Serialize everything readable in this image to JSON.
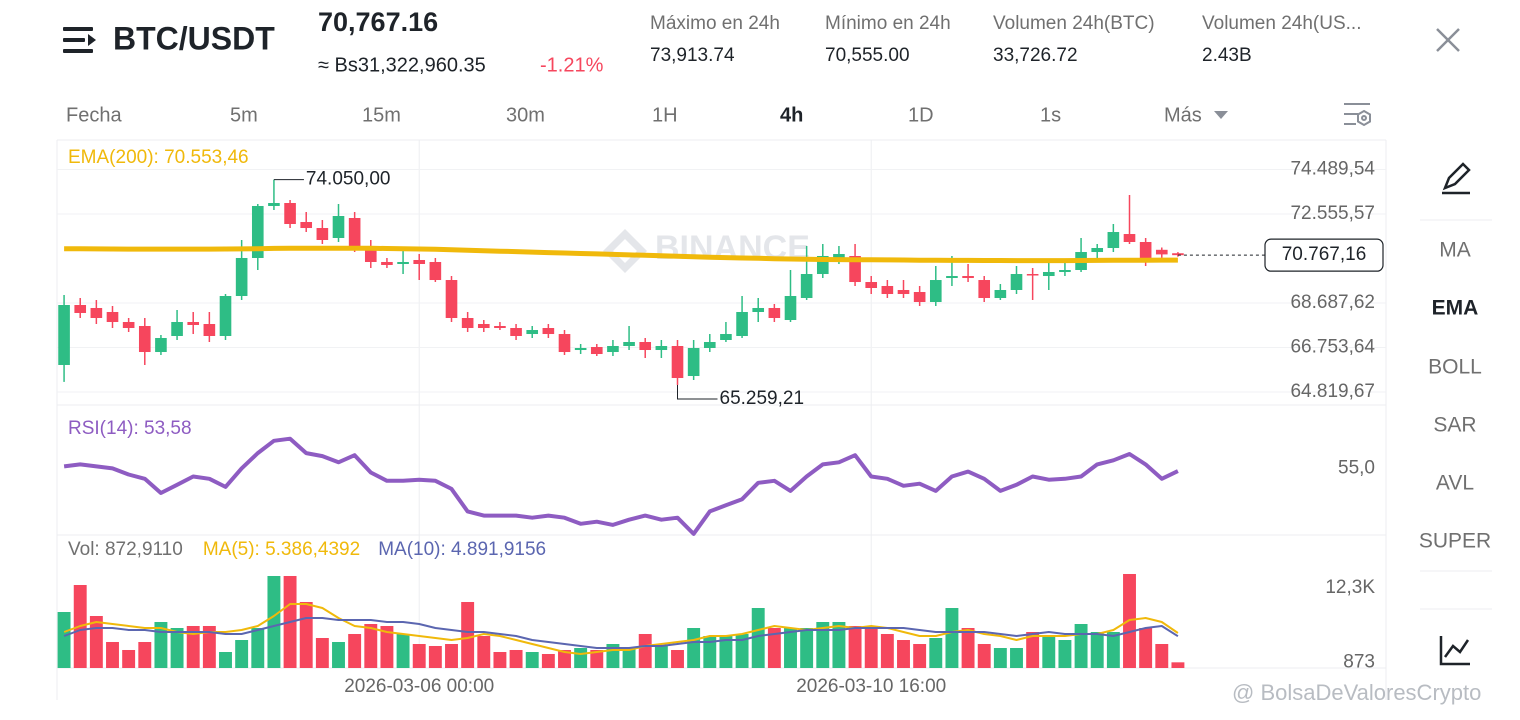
{
  "header": {
    "pair": "BTC/USDT",
    "price": "70,767.16",
    "fiat": "≈ Bs31,322,960.35",
    "change": "-1.21%",
    "stats": [
      {
        "label": "Máximo en 24h",
        "value": "73,913.74"
      },
      {
        "label": "Mínimo en 24h",
        "value": "70,555.00"
      },
      {
        "label": "Volumen 24h(BTC)",
        "value": "33,726.72"
      },
      {
        "label": "Volumen 24h(US...",
        "value": "2.43B"
      }
    ]
  },
  "tabs": [
    "Fecha",
    "5m",
    "15m",
    "30m",
    "1H",
    "4h",
    "1D",
    "1s",
    "Más"
  ],
  "side_menu": [
    "MA",
    "EMA",
    "BOLL",
    "SAR",
    "AVL",
    "SUPER"
  ],
  "watermark": "BINANCE",
  "credit": "@ BolsaDeValoresCrypto",
  "chart_data": [
    {
      "type": "candlestick",
      "up_color": "#2ebd85",
      "down_color": "#f6465d",
      "grid": true,
      "open": [
        65994,
        68601,
        68471,
        68297,
        67862,
        67688,
        66558,
        67254,
        67862,
        67775,
        67254,
        68992,
        70644,
        72904,
        73034,
        72208,
        71947,
        71513,
        72382,
        71078,
        70470,
        70383,
        70557,
        70470,
        69687,
        68036,
        67775,
        67688,
        67601,
        67340,
        67601,
        67340,
        66645,
        66775,
        66558,
        66819,
        66993,
        66645,
        66819,
        65515,
        66732,
        67080,
        67254,
        68297,
        68471,
        67949,
        68905,
        69948,
        70644,
        70731,
        69600,
        69427,
        69253,
        69166,
        68731,
        69774,
        69861,
        69687,
        68905,
        69253,
        69948,
        69861,
        70035,
        70122,
        70904,
        71078,
        71686,
        71339,
        71000,
        70850
      ],
      "high": [
        69036,
        68905,
        68818,
        68558,
        68036,
        68036,
        67297,
        68384,
        68297,
        68297,
        69079,
        71426,
        72991,
        74050,
        73164,
        72643,
        72295,
        72991,
        72643,
        71426,
        70644,
        70991,
        70817,
        70644,
        69861,
        68297,
        67949,
        67862,
        67775,
        67688,
        67775,
        67514,
        66906,
        66906,
        67080,
        67688,
        67167,
        67080,
        67080,
        67080,
        67340,
        67862,
        68992,
        68905,
        68644,
        70122,
        71165,
        71252,
        71165,
        71252,
        69861,
        69687,
        69687,
        69427,
        70296,
        70731,
        70383,
        69861,
        69513,
        70296,
        70209,
        70470,
        70470,
        71513,
        71252,
        72121,
        73382,
        71513,
        71100,
        70900
      ],
      "low": [
        65259.21,
        68036,
        67775,
        67601,
        67427,
        65994,
        66428,
        67080,
        67340,
        66993,
        67080,
        68818,
        70122,
        72730,
        71947,
        71773,
        71252,
        71339,
        70904,
        70209,
        70209,
        69948,
        69687,
        69600,
        67862,
        67427,
        67427,
        67514,
        67080,
        67167,
        67167,
        66428,
        66471,
        66384,
        66384,
        66645,
        66297,
        66297,
        65125,
        65342,
        66558,
        66993,
        67167,
        67862,
        67862,
        67862,
        68818,
        69774,
        70383,
        69427,
        69079,
        68905,
        68905,
        68557,
        68557,
        69427,
        69600,
        68731,
        68818,
        69079,
        68818,
        69253,
        69861,
        70035,
        70644,
        70904,
        71252,
        70296,
        70650,
        70700
      ],
      "close": [
        68601,
        68254,
        68036,
        67862,
        67601,
        66558,
        67167,
        67862,
        67732,
        67254,
        68992,
        70644,
        72904,
        73034,
        72121,
        71947,
        71426,
        72469,
        71078,
        70470,
        70340,
        70470,
        70383,
        69687,
        68036,
        67601,
        67601,
        67601,
        67254,
        67514,
        67340,
        66558,
        66732,
        66471,
        66819,
        66993,
        66645,
        66819,
        65428,
        66732,
        66993,
        67340,
        68297,
        68471,
        68036,
        68992,
        69948,
        70731,
        70817,
        69600,
        69340,
        69079,
        69079,
        68731,
        69687,
        69861,
        69774,
        68905,
        69253,
        69948,
        69905,
        70035,
        70122,
        70904,
        71078,
        71773,
        71339,
        70644,
        70800,
        70767.16
      ],
      "series": [
        {
          "name": "EMA(200): 70.553,46",
          "color": "#f0b90b",
          "values": [
            71050,
            71045,
            71040,
            71035,
            71030,
            71030,
            71030,
            71030,
            71030,
            71030,
            71035,
            71040,
            71050,
            71060,
            71065,
            71070,
            71070,
            71070,
            71070,
            71065,
            71055,
            71045,
            71035,
            71020,
            71000,
            70980,
            70960,
            70940,
            70920,
            70900,
            70880,
            70860,
            70840,
            70820,
            70800,
            70780,
            70760,
            70740,
            70720,
            70700,
            70680,
            70660,
            70645,
            70630,
            70615,
            70600,
            70590,
            70580,
            70575,
            70570,
            70565,
            70560,
            70555,
            70550,
            70545,
            70540,
            70538,
            70535,
            70533,
            70530,
            70530,
            70530,
            70532,
            70535,
            70540,
            70545,
            70548,
            70550,
            70552,
            70553.46
          ]
        }
      ],
      "ylim": [
        64255,
        75772
      ],
      "yticks": [
        {
          "value": 64819.67,
          "label": "64.819,67"
        },
        {
          "value": 66753.64,
          "label": "66.753,64"
        },
        {
          "value": 68687.62,
          "label": "68.687,62"
        },
        {
          "value": 72555.57,
          "label": "72.555,57"
        },
        {
          "value": 74489.54,
          "label": "74.489,54"
        }
      ],
      "high_label": "74.050,00",
      "low_label": "65.259,21",
      "last_label": "70.767,16"
    },
    {
      "type": "line",
      "grid": false,
      "series": [
        {
          "name": "RSI(14): 53,58",
          "color": "#8e5cc2",
          "values": [
            56.1,
            57.2,
            56.1,
            55.0,
            51.7,
            49.4,
            41.7,
            46.1,
            50.6,
            49.4,
            45.0,
            55.0,
            63.3,
            70.0,
            71.1,
            63.3,
            61.7,
            58.3,
            62.2,
            52.8,
            48.3,
            48.3,
            48.9,
            48.3,
            43.9,
            31.7,
            29.4,
            29.4,
            29.4,
            28.3,
            29.4,
            28.3,
            25.0,
            26.1,
            24.4,
            27.2,
            29.4,
            27.2,
            28.3,
            19.5,
            31.7,
            35.0,
            38.3,
            47.2,
            48.3,
            42.8,
            50.6,
            57.2,
            58.3,
            62.2,
            50.6,
            49.4,
            45.6,
            46.7,
            42.8,
            50.6,
            53.3,
            49.4,
            42.8,
            46.1,
            50.6,
            48.9,
            49.4,
            50.6,
            57.2,
            59.4,
            62.8,
            57.2,
            49.4,
            53.58
          ]
        }
      ],
      "ylim": [
        18.9,
        89.4
      ],
      "yticks": [
        {
          "value": 55,
          "label": "55,0"
        }
      ]
    },
    {
      "type": "bar",
      "grid": false,
      "title": "Vol: 872,9110",
      "categories": [
        null,
        null,
        null,
        null,
        null,
        null,
        null,
        null,
        null,
        null,
        null,
        null,
        null,
        null,
        null,
        null,
        null,
        null,
        null,
        null,
        null,
        null,
        "2026-03-06 00:00",
        null,
        null,
        null,
        null,
        null,
        null,
        null,
        null,
        null,
        null,
        null,
        null,
        null,
        null,
        null,
        null,
        null,
        null,
        null,
        null,
        null,
        null,
        null,
        null,
        null,
        null,
        null,
        "2026-03-10 16:00",
        null,
        null,
        null,
        null,
        null,
        null,
        null,
        null,
        null,
        null,
        null,
        null,
        null,
        null,
        null,
        null,
        null,
        null,
        null
      ],
      "values": [
        8610,
        12761,
        7995,
        3998,
        2768,
        3998,
        7073,
        6150,
        6458,
        6458,
        2460,
        4305,
        6150,
        14145,
        14145,
        10148,
        4613,
        3998,
        5228,
        6765,
        6458,
        5228,
        3690,
        3383,
        3690,
        10148,
        4920,
        2460,
        2768,
        2460,
        2153,
        2768,
        3075,
        2768,
        3690,
        3075,
        5228,
        3383,
        2768,
        6150,
        4920,
        4920,
        5228,
        9225,
        6150,
        6150,
        6150,
        7073,
        7073,
        6458,
        6458,
        5228,
        4305,
        3690,
        4613,
        9225,
        6150,
        3690,
        3075,
        3075,
        5535,
        4920,
        4305,
        6765,
        5535,
        5535,
        14453,
        6150,
        3690,
        872.911
      ],
      "series": [
        {
          "name": "MA(5): 5.386,4392",
          "color": "#f0b90b",
          "values": [
            5535,
            6458,
            7073,
            6765,
            6458,
            6150,
            6150,
            5535,
            5228,
            5535,
            5535,
            5843,
            6458,
            7995,
            9840,
            9840,
            9225,
            7688,
            6458,
            6150,
            5535,
            5228,
            4920,
            4613,
            4305,
            4613,
            5228,
            4920,
            4305,
            3690,
            3075,
            2460,
            2153,
            2460,
            2768,
            2768,
            3383,
            3690,
            3998,
            4305,
            4920,
            4920,
            5228,
            5843,
            6458,
            6150,
            5843,
            6150,
            6458,
            6150,
            6458,
            6150,
            5535,
            4920,
            4920,
            5535,
            5843,
            5228,
            4920,
            4305,
            4920,
            4920,
            4920,
            5228,
            5228,
            5843,
            7380,
            7688,
            7073,
            5386.4392
          ]
        },
        {
          "name": "MA(10): 4.891,9156",
          "color": "#5b66b0",
          "values": [
            4920,
            5843,
            6150,
            6150,
            5843,
            5843,
            5535,
            5535,
            5535,
            5535,
            5228,
            5228,
            5843,
            6458,
            7073,
            7688,
            7688,
            7380,
            7380,
            7380,
            7073,
            7073,
            6765,
            6150,
            5843,
            5535,
            5535,
            5228,
            4920,
            4305,
            3998,
            3690,
            3383,
            3075,
            3075,
            3075,
            3383,
            3383,
            3690,
            3998,
            3998,
            4305,
            4305,
            4920,
            5228,
            5535,
            5843,
            5843,
            5843,
            6150,
            6150,
            6150,
            6150,
            5843,
            5535,
            5535,
            5535,
            5535,
            5228,
            4920,
            5228,
            5535,
            5228,
            5228,
            5228,
            4920,
            5535,
            6150,
            6458,
            4891.9156
          ]
        }
      ],
      "ylim": [
        0,
        18911
      ],
      "yticks": [
        873,
        {
          "value": 12300,
          "label": "12,3K"
        }
      ]
    }
  ]
}
